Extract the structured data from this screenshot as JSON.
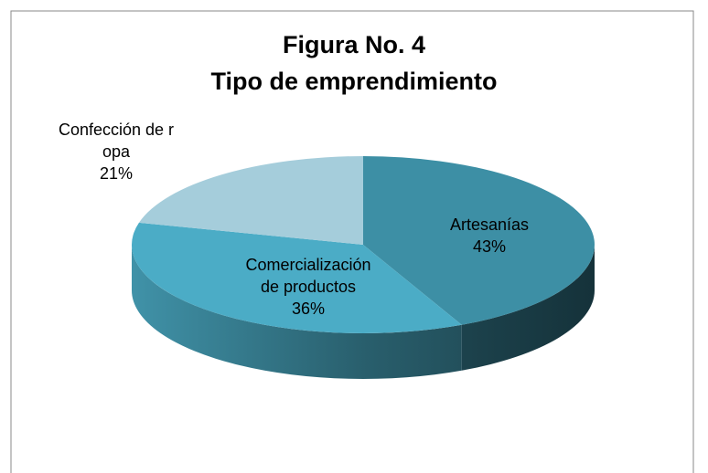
{
  "chart_data": {
    "type": "pie3d",
    "title": "Figura No. 4",
    "subtitle": "Tipo de emprendimiento",
    "categories": [
      "Artesanías",
      "Comercialización de productos",
      "Confección de ropa"
    ],
    "values": [
      43,
      36,
      21
    ],
    "value_labels": [
      "43%",
      "36%",
      "21%"
    ],
    "colors": [
      "#3d8fa5",
      "#4bacc6",
      "#a5cddb"
    ]
  }
}
